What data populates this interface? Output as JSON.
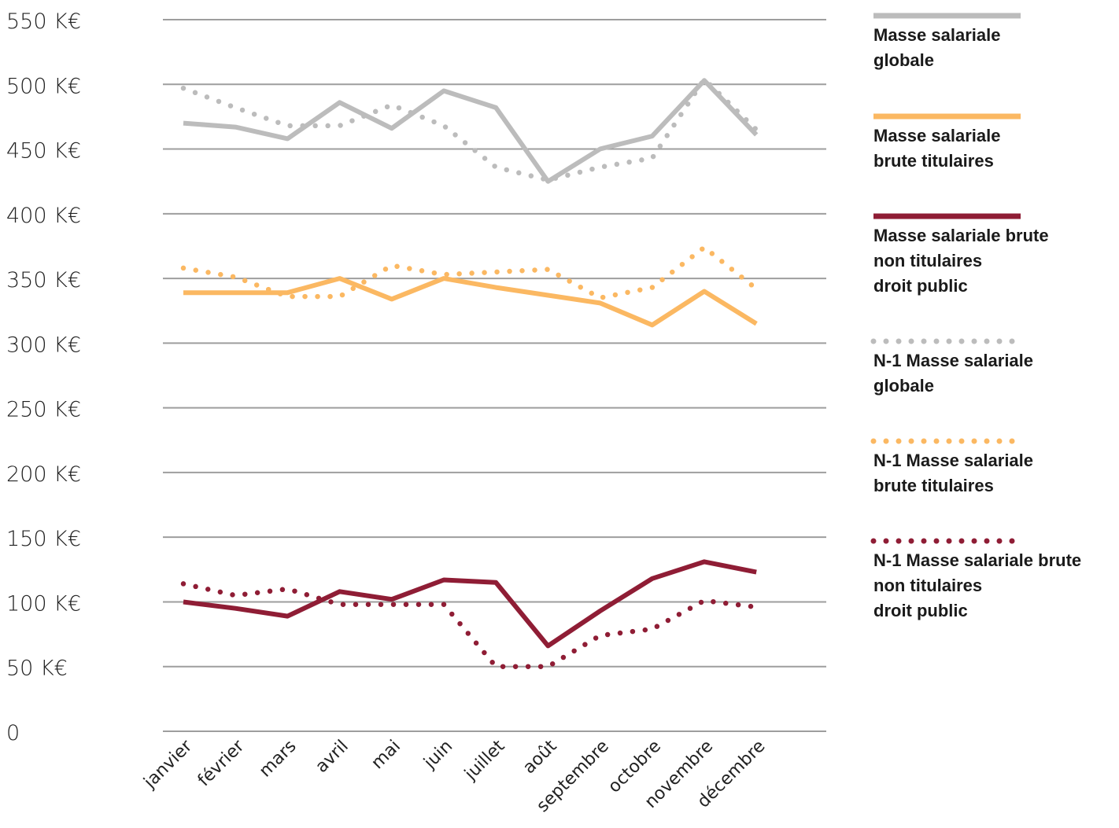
{
  "chart_data": {
    "type": "line",
    "categories": [
      "janvier",
      "février",
      "mars",
      "avril",
      "mai",
      "juin",
      "juillet",
      "août",
      "septembre",
      "octobre",
      "novembre",
      "décembre"
    ],
    "ylim": [
      0,
      550
    ],
    "yticks": [
      0,
      50,
      100,
      150,
      200,
      250,
      300,
      350,
      400,
      450,
      500,
      550
    ],
    "ytick_labels": [
      "0",
      "50 K€",
      "100 K€",
      "150 K€",
      "200 K€",
      "250 K€",
      "300 K€",
      "350 K€",
      "400 K€",
      "450 K€",
      "500 K€",
      "550 K€"
    ],
    "grid": true,
    "legend_position": "right",
    "series": [
      {
        "name": "Masse salariale globale",
        "legend_lines": [
          "Masse salariale",
          "globale"
        ],
        "style": "solid",
        "color": "#bcbcbc",
        "values": [
          470,
          467,
          458,
          486,
          466,
          495,
          482,
          425,
          450,
          460,
          503,
          461
        ]
      },
      {
        "name": "Masse salariale brute titulaires",
        "legend_lines": [
          "Masse salariale",
          "brute titulaires"
        ],
        "style": "solid",
        "color": "#fbb862",
        "values": [
          339,
          339,
          339,
          350,
          334,
          350,
          343,
          337,
          331,
          314,
          340,
          315
        ]
      },
      {
        "name": "Masse salariale brute non titulaires droit public",
        "legend_lines": [
          "Masse salariale brute",
          "non titulaires",
          "droit public"
        ],
        "style": "solid",
        "color": "#8f1d35",
        "values": [
          100,
          95,
          89,
          108,
          102,
          117,
          115,
          66,
          93,
          118,
          131,
          123
        ]
      },
      {
        "name": "N-1 Masse salariale globale",
        "legend_lines": [
          "N-1 Masse salariale",
          "globale"
        ],
        "style": "dotted",
        "color": "#bcbcbc",
        "values": [
          497,
          482,
          468,
          468,
          484,
          468,
          436,
          426,
          436,
          443,
          504,
          465
        ]
      },
      {
        "name": "N-1 Masse salariale brute titulaires",
        "legend_lines": [
          "N-1 Masse salariale",
          "brute titulaires"
        ],
        "style": "dotted",
        "color": "#fbb862",
        "values": [
          358,
          351,
          336,
          336,
          360,
          353,
          355,
          357,
          335,
          343,
          374,
          342
        ]
      },
      {
        "name": "N-1 Masse salariale brute non titulaires droit public",
        "legend_lines": [
          "N-1 Masse salariale brute",
          "non titulaires",
          "droit public"
        ],
        "style": "dotted",
        "color": "#8f1d35",
        "values": [
          114,
          105,
          110,
          98,
          98,
          98,
          50,
          50,
          74,
          79,
          101,
          96
        ]
      }
    ]
  }
}
